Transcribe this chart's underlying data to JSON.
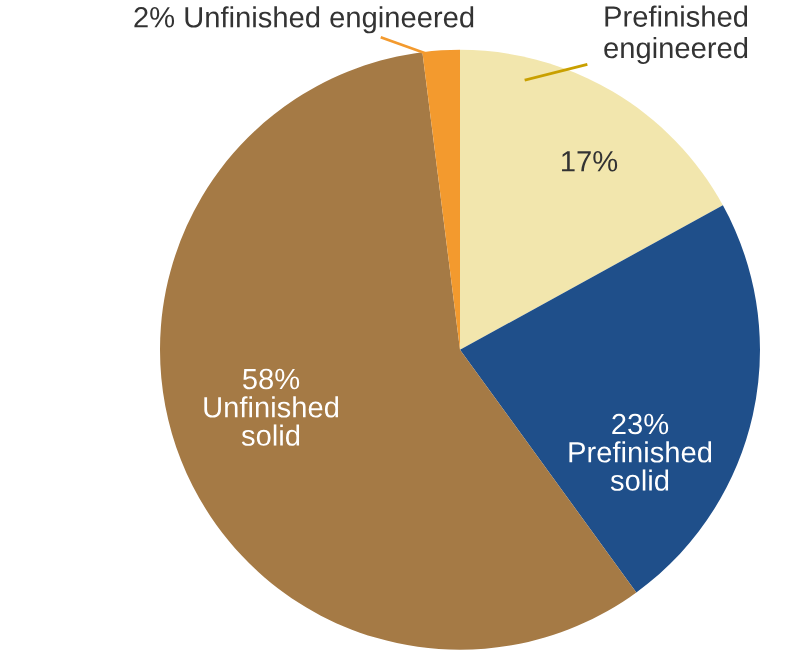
{
  "chart_data": {
    "type": "pie",
    "categories": [
      "Prefinished engineered",
      "Prefinished solid",
      "Unfinished solid",
      "Unfinished engineered"
    ],
    "values": [
      17,
      23,
      58,
      2
    ],
    "value_labels": [
      "17%",
      "23%",
      "58%",
      "2%"
    ],
    "colors": [
      "#f2e6ad",
      "#1f4f8a",
      "#a57a45",
      "#f39a2e"
    ]
  }
}
